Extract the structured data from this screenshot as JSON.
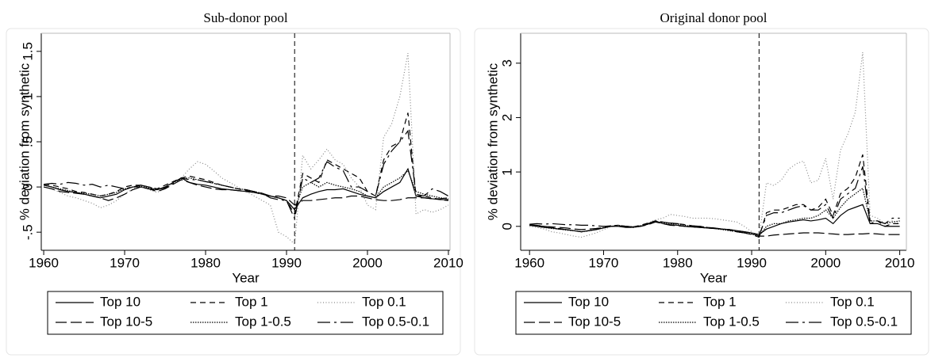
{
  "chart_data": [
    {
      "type": "line",
      "title": "Sub-donor pool",
      "ylabel": "% deviation from synthetic",
      "xlabel": "Year",
      "xlim": [
        1959.7,
        2010.2
      ],
      "ylim": [
        -0.7,
        1.7
      ],
      "xticks": [
        1960,
        1970,
        1980,
        1990,
        2000,
        2010
      ],
      "yticks": [
        {
          "value": -0.5,
          "label": "-.5"
        },
        0,
        {
          "value": 0.5,
          "label": ".5"
        },
        1,
        1.5
      ],
      "vline": 1991,
      "x": [
        1960,
        1961,
        1962,
        1963,
        1964,
        1965,
        1966,
        1967,
        1968,
        1969,
        1970,
        1971,
        1972,
        1973,
        1974,
        1975,
        1976,
        1977,
        1978,
        1979,
        1980,
        1981,
        1982,
        1983,
        1984,
        1985,
        1986,
        1987,
        1988,
        1989,
        1990,
        1991,
        1992,
        1993,
        1994,
        1995,
        1996,
        1997,
        1998,
        1999,
        2000,
        2001,
        2002,
        2003,
        2004,
        2005,
        2006,
        2007,
        2008,
        2009,
        2010
      ],
      "series": [
        {
          "name": "Top 10",
          "color": "#000000",
          "style": "solid",
          "values": [
            0.02,
            0.0,
            -0.03,
            -0.05,
            -0.06,
            -0.08,
            -0.1,
            -0.12,
            -0.1,
            -0.08,
            -0.03,
            0.0,
            0.0,
            -0.02,
            -0.03,
            0.0,
            0.05,
            0.1,
            0.05,
            0.03,
            0.02,
            0.0,
            -0.02,
            -0.03,
            -0.04,
            -0.05,
            -0.06,
            -0.07,
            -0.1,
            -0.12,
            -0.15,
            -0.25,
            -0.12,
            -0.08,
            -0.05,
            -0.03,
            -0.03,
            -0.02,
            -0.05,
            -0.08,
            -0.1,
            -0.12,
            -0.05,
            0.0,
            0.05,
            0.2,
            -0.1,
            -0.12,
            -0.13,
            -0.14,
            -0.14
          ]
        },
        {
          "name": "Top 1",
          "color": "#000000",
          "style": "dashed",
          "values": [
            0.03,
            0.02,
            0.0,
            -0.02,
            -0.05,
            -0.06,
            -0.08,
            -0.1,
            -0.08,
            -0.05,
            0.0,
            0.02,
            0.02,
            0.0,
            -0.02,
            0.02,
            0.06,
            0.1,
            0.12,
            0.1,
            0.08,
            0.05,
            0.02,
            0.0,
            -0.02,
            -0.04,
            -0.06,
            -0.08,
            -0.1,
            -0.12,
            -0.15,
            -0.3,
            0.15,
            0.1,
            0.05,
            0.3,
            0.25,
            0.2,
            0.15,
            0.1,
            -0.05,
            -0.1,
            0.3,
            0.45,
            0.5,
            0.82,
            -0.1,
            -0.1,
            -0.12,
            -0.14,
            -0.15
          ]
        },
        {
          "name": "Top 0.1",
          "color": "#888888",
          "style": "dotted",
          "values": [
            0.0,
            -0.02,
            -0.06,
            -0.1,
            -0.12,
            -0.15,
            -0.18,
            -0.23,
            -0.2,
            -0.15,
            -0.08,
            -0.02,
            0.0,
            -0.03,
            -0.06,
            -0.02,
            0.05,
            0.1,
            0.2,
            0.28,
            0.25,
            0.18,
            0.1,
            0.05,
            0.0,
            -0.05,
            -0.1,
            -0.15,
            -0.2,
            -0.5,
            -0.55,
            -0.63,
            0.35,
            0.2,
            0.3,
            0.42,
            0.3,
            0.25,
            0.1,
            0.0,
            -0.2,
            -0.25,
            0.55,
            0.7,
            1.0,
            1.48,
            -0.3,
            -0.25,
            -0.28,
            -0.25,
            -0.2
          ]
        },
        {
          "name": "Top 10-5",
          "color": "#000000",
          "style": "longdash",
          "values": [
            0.0,
            -0.02,
            -0.05,
            -0.06,
            -0.07,
            -0.08,
            -0.1,
            -0.12,
            -0.15,
            -0.12,
            -0.08,
            -0.03,
            0.0,
            -0.02,
            -0.05,
            -0.02,
            0.03,
            0.08,
            0.05,
            0.02,
            0.0,
            -0.02,
            -0.03,
            -0.03,
            -0.04,
            -0.05,
            -0.06,
            -0.08,
            -0.1,
            -0.1,
            -0.12,
            -0.2,
            -0.15,
            -0.15,
            -0.14,
            -0.13,
            -0.12,
            -0.12,
            -0.1,
            -0.1,
            -0.12,
            -0.14,
            -0.15,
            -0.15,
            -0.14,
            -0.12,
            -0.12,
            -0.12,
            -0.13,
            -0.13,
            -0.12
          ]
        },
        {
          "name": "Top 1-0.5",
          "color": "#000000",
          "style": "dot",
          "values": [
            0.02,
            0.0,
            -0.02,
            -0.04,
            -0.06,
            -0.07,
            -0.08,
            -0.1,
            -0.08,
            -0.06,
            -0.02,
            0.0,
            0.01,
            -0.01,
            -0.03,
            0.0,
            0.05,
            0.09,
            0.1,
            0.08,
            0.06,
            0.04,
            0.02,
            0.0,
            -0.02,
            -0.03,
            -0.05,
            -0.07,
            -0.1,
            -0.12,
            -0.15,
            -0.25,
            0.0,
            0.05,
            0.0,
            0.05,
            0.02,
            0.0,
            -0.02,
            -0.05,
            -0.1,
            -0.12,
            0.0,
            0.05,
            0.1,
            0.18,
            -0.05,
            -0.08,
            -0.1,
            -0.12,
            -0.13
          ]
        },
        {
          "name": "Top 0.5-0.1",
          "color": "#000000",
          "style": "dashdot",
          "values": [
            0.03,
            0.04,
            0.03,
            0.05,
            0.04,
            0.02,
            0.03,
            0.0,
            0.02,
            0.0,
            -0.02,
            0.0,
            0.02,
            0.0,
            -0.03,
            -0.01,
            0.04,
            0.1,
            0.08,
            0.08,
            0.06,
            0.04,
            0.02,
            0.0,
            -0.02,
            -0.03,
            -0.05,
            -0.07,
            -0.12,
            -0.14,
            -0.15,
            -0.35,
            0.1,
            0.05,
            0.1,
            0.28,
            0.22,
            0.18,
            0.0,
            0.0,
            -0.05,
            -0.1,
            0.25,
            0.4,
            0.5,
            0.62,
            -0.08,
            -0.1,
            -0.02,
            -0.05,
            -0.1
          ]
        }
      ]
    },
    {
      "type": "line",
      "title": "Original donor pool",
      "ylabel": "% deviation from synthetic",
      "xlabel": "Year",
      "xlim": [
        1958.8,
        2010.9
      ],
      "ylim": [
        -0.44,
        3.55
      ],
      "xticks": [
        1960,
        1970,
        1980,
        1990,
        2000,
        2010
      ],
      "yticks": [
        0,
        1,
        2,
        3
      ],
      "vline": 1991,
      "x": [
        1960,
        1961,
        1962,
        1963,
        1964,
        1965,
        1966,
        1967,
        1968,
        1969,
        1970,
        1971,
        1972,
        1973,
        1974,
        1975,
        1976,
        1977,
        1978,
        1979,
        1980,
        1981,
        1982,
        1983,
        1984,
        1985,
        1986,
        1987,
        1988,
        1989,
        1990,
        1991,
        1992,
        1993,
        1994,
        1995,
        1996,
        1997,
        1998,
        1999,
        2000,
        2001,
        2002,
        2003,
        2004,
        2005,
        2006,
        2007,
        2008,
        2009,
        2010
      ],
      "series": [
        {
          "name": "Top 10",
          "color": "#000000",
          "style": "solid",
          "values": [
            0.02,
            0.0,
            -0.02,
            -0.03,
            -0.05,
            -0.06,
            -0.08,
            -0.1,
            -0.08,
            -0.06,
            -0.03,
            0.0,
            0.0,
            -0.02,
            -0.02,
            0.0,
            0.04,
            0.1,
            0.05,
            0.03,
            0.02,
            0.0,
            -0.01,
            -0.02,
            -0.03,
            -0.04,
            -0.05,
            -0.06,
            -0.08,
            -0.1,
            -0.12,
            -0.15,
            -0.05,
            0.0,
            0.05,
            0.08,
            0.1,
            0.12,
            0.1,
            0.12,
            0.15,
            0.05,
            0.2,
            0.3,
            0.35,
            0.4,
            0.05,
            0.05,
            0.0,
            0.0,
            0.0
          ]
        },
        {
          "name": "Top 1",
          "color": "#000000",
          "style": "dashed",
          "values": [
            0.02,
            0.01,
            0.0,
            -0.02,
            -0.04,
            -0.06,
            -0.08,
            -0.1,
            -0.08,
            -0.05,
            -0.02,
            0.01,
            0.02,
            0.0,
            -0.01,
            0.02,
            0.06,
            0.1,
            0.08,
            0.06,
            0.05,
            0.03,
            0.01,
            0.0,
            -0.02,
            -0.03,
            -0.05,
            -0.07,
            -0.1,
            -0.12,
            -0.15,
            -0.2,
            0.25,
            0.3,
            0.3,
            0.35,
            0.4,
            0.4,
            0.3,
            0.35,
            0.5,
            0.2,
            0.6,
            0.7,
            0.9,
            1.32,
            0.1,
            0.1,
            0.0,
            0.05,
            0.05
          ]
        },
        {
          "name": "Top 0.1",
          "color": "#888888",
          "style": "dotted",
          "values": [
            0.0,
            -0.02,
            -0.05,
            -0.1,
            -0.12,
            -0.15,
            -0.18,
            -0.2,
            -0.16,
            -0.12,
            -0.06,
            0.0,
            0.02,
            0.0,
            -0.02,
            0.0,
            0.06,
            0.12,
            0.15,
            0.22,
            0.2,
            0.18,
            0.15,
            0.15,
            0.15,
            0.14,
            0.12,
            0.1,
            0.08,
            0.0,
            -0.1,
            -0.2,
            0.8,
            0.75,
            0.85,
            1.05,
            1.15,
            1.2,
            0.8,
            0.85,
            1.25,
            0.5,
            1.4,
            1.7,
            2.1,
            3.2,
            0.2,
            0.15,
            0.05,
            0.1,
            0.05
          ]
        },
        {
          "name": "Top 10-5",
          "color": "#000000",
          "style": "longdash",
          "values": [
            0.03,
            0.02,
            0.0,
            -0.01,
            -0.02,
            -0.03,
            -0.05,
            -0.06,
            -0.05,
            -0.04,
            -0.02,
            0.0,
            0.01,
            0.0,
            -0.01,
            0.0,
            0.03,
            0.08,
            0.05,
            0.02,
            0.01,
            0.0,
            -0.01,
            -0.02,
            -0.03,
            -0.04,
            -0.05,
            -0.06,
            -0.08,
            -0.1,
            -0.12,
            -0.18,
            -0.18,
            -0.16,
            -0.15,
            -0.14,
            -0.13,
            -0.12,
            -0.12,
            -0.12,
            -0.13,
            -0.14,
            -0.15,
            -0.15,
            -0.14,
            -0.14,
            -0.13,
            -0.14,
            -0.15,
            -0.15,
            -0.15
          ]
        },
        {
          "name": "Top 1-0.5",
          "color": "#000000",
          "style": "dot",
          "values": [
            0.02,
            0.0,
            -0.02,
            -0.04,
            -0.05,
            -0.07,
            -0.08,
            -0.1,
            -0.08,
            -0.06,
            -0.02,
            0.0,
            0.01,
            0.0,
            -0.01,
            0.01,
            0.05,
            0.08,
            0.07,
            0.05,
            0.04,
            0.02,
            0.0,
            -0.01,
            -0.03,
            -0.04,
            -0.06,
            -0.08,
            -0.1,
            -0.12,
            -0.14,
            -0.18,
            0.0,
            0.05,
            0.05,
            0.1,
            0.12,
            0.15,
            0.15,
            0.2,
            0.3,
            0.15,
            0.35,
            0.5,
            0.6,
            0.7,
            0.1,
            0.1,
            0.05,
            0.08,
            0.1
          ]
        },
        {
          "name": "Top 0.5-0.1",
          "color": "#000000",
          "style": "dashdot",
          "values": [
            0.04,
            0.05,
            0.04,
            0.05,
            0.04,
            0.03,
            0.03,
            0.02,
            0.02,
            0.01,
            0.0,
            0.01,
            0.02,
            0.0,
            -0.01,
            0.01,
            0.05,
            0.1,
            0.08,
            0.06,
            0.05,
            0.03,
            0.01,
            0.0,
            -0.02,
            -0.03,
            -0.05,
            -0.07,
            -0.1,
            -0.12,
            -0.14,
            -0.18,
            0.2,
            0.25,
            0.25,
            0.3,
            0.35,
            0.38,
            0.3,
            0.3,
            0.4,
            0.15,
            0.5,
            0.6,
            0.7,
            1.1,
            0.05,
            0.1,
            0.05,
            0.15,
            0.15
          ]
        }
      ]
    }
  ]
}
